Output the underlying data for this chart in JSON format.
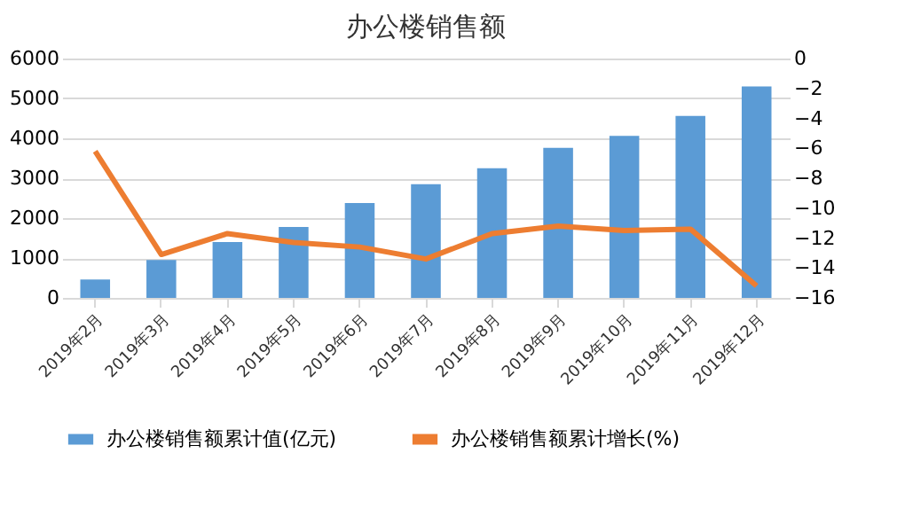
{
  "chart_data": {
    "type": "bar",
    "title": "办公楼销售额",
    "categories": [
      "2019年2月",
      "2019年3月",
      "2019年4月",
      "2019年5月",
      "2019年6月",
      "2019年7月",
      "2019年8月",
      "2019年9月",
      "2019年10月",
      "2019年11月",
      "2019年12月"
    ],
    "series": [
      {
        "name": "办公楼销售额累计值(亿元)",
        "color": "#5b9bd5",
        "values": [
          460,
          950,
          1400,
          1780,
          2380,
          2850,
          3250,
          3760,
          4060,
          4560,
          5300
        ]
      },
      {
        "name": "办公楼销售额累计增长(%)",
        "type": "line",
        "axis": "y2",
        "color": "#ed7d31",
        "values": [
          -6.2,
          -13.1,
          -11.7,
          -12.3,
          -12.6,
          -13.4,
          -11.7,
          -11.2,
          -11.5,
          -11.4,
          -15.2
        ]
      }
    ],
    "ylim": [
      0,
      6000
    ],
    "yticks": [
      0,
      1000,
      2000,
      3000,
      4000,
      5000,
      6000
    ],
    "y2lim": [
      -16,
      0
    ],
    "y2ticks": [
      -16,
      -14,
      -12,
      -10,
      -8,
      -6,
      -4,
      -2,
      0
    ],
    "grid": "y",
    "legend": "bottom",
    "marker": "none",
    "line_style": "solid"
  }
}
